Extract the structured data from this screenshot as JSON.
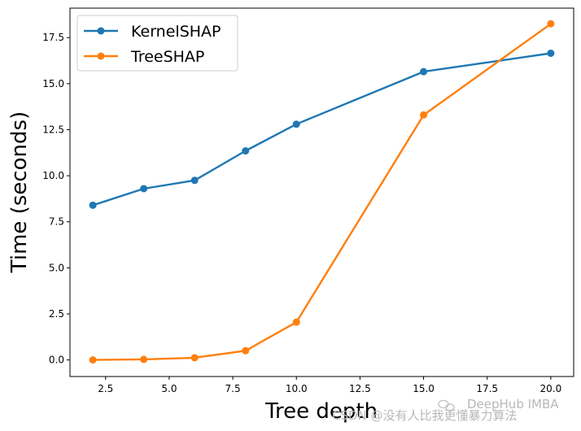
{
  "chart_data": {
    "type": "line",
    "title": "",
    "xlabel": "Tree depth",
    "ylabel": "Time (seconds)",
    "xlim": [
      1.1,
      20.9
    ],
    "ylim": [
      -0.9,
      19.1
    ],
    "xticks": [
      2.5,
      5.0,
      7.5,
      10.0,
      12.5,
      15.0,
      17.5,
      20.0
    ],
    "xtick_labels": [
      "2.5",
      "5.0",
      "7.5",
      "10.0",
      "12.5",
      "15.0",
      "17.5",
      "20.0"
    ],
    "yticks": [
      0.0,
      2.5,
      5.0,
      7.5,
      10.0,
      12.5,
      15.0,
      17.5
    ],
    "ytick_labels": [
      "0.0",
      "2.5",
      "5.0",
      "7.5",
      "10.0",
      "12.5",
      "15.0",
      "17.5"
    ],
    "grid": false,
    "legend_position": "top-left",
    "x": [
      2,
      4,
      6,
      8,
      10,
      15,
      20
    ],
    "series": [
      {
        "name": "KernelSHAP",
        "color": "#1f77b4",
        "values": [
          8.4,
          9.3,
          9.75,
          11.35,
          12.8,
          15.65,
          16.65
        ]
      },
      {
        "name": "TreeSHAP",
        "color": "#ff7f0e",
        "values": [
          0.0,
          0.03,
          0.12,
          0.5,
          2.05,
          13.3,
          18.25
        ]
      }
    ]
  },
  "watermark": {
    "text": "CSDN @没有人比我更懂暴力算法",
    "brand": "DeepHub IMBA",
    "icon": "wechat-icon"
  }
}
